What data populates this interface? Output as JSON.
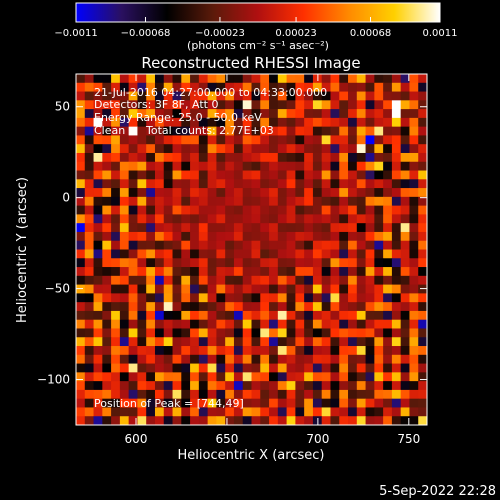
{
  "colorbar": {
    "min": -0.0011,
    "max": 0.0011,
    "tick_values": [
      -0.0011,
      -0.00068,
      -0.00023,
      0.00023,
      0.00068,
      0.0011
    ],
    "tick_labels": [
      "−0.0011",
      "−0.00068",
      "−0.00023",
      "0.00023",
      "0.00068",
      "0.0011"
    ],
    "units": "(photons cm⁻² s⁻¹ asec⁻²)",
    "palette": [
      "#0000ff",
      "#2a1060",
      "#000000",
      "#5a1a0a",
      "#b01010",
      "#ff3000",
      "#ff8a00",
      "#ffd000",
      "#ffffff"
    ]
  },
  "chart_data": {
    "type": "heatmap",
    "title": "Reconstructed RHESSI Image",
    "xlabel": "Heliocentric X (arcsec)",
    "ylabel": "Heliocentric Y (arcsec)",
    "xlim": [
      567,
      760
    ],
    "ylim": [
      -125,
      68
    ],
    "x_ticks": [
      600,
      650,
      700,
      750
    ],
    "y_ticks": [
      50,
      0,
      -50,
      -100
    ],
    "x_tick_labels": [
      "600",
      "650",
      "700",
      "750"
    ],
    "y_tick_labels": [
      "50",
      "0",
      "−50",
      "−100"
    ],
    "grid": false,
    "peak": [
      744,
      49
    ]
  },
  "annotations": {
    "time_range": "21-Jul-2016 04:27:00.000 to 04:33:00.000",
    "detectors": "Detectors: 3F 8F, Att 0",
    "energy": "Energy Range: 25.0 - 50.0 keV",
    "clean": "Clean",
    "total_counts": "Total counts: 2.77E+03",
    "peak_position": "Position of Peak = [744,49]"
  },
  "footer": {
    "date": "5-Sep-2022 22:28"
  }
}
